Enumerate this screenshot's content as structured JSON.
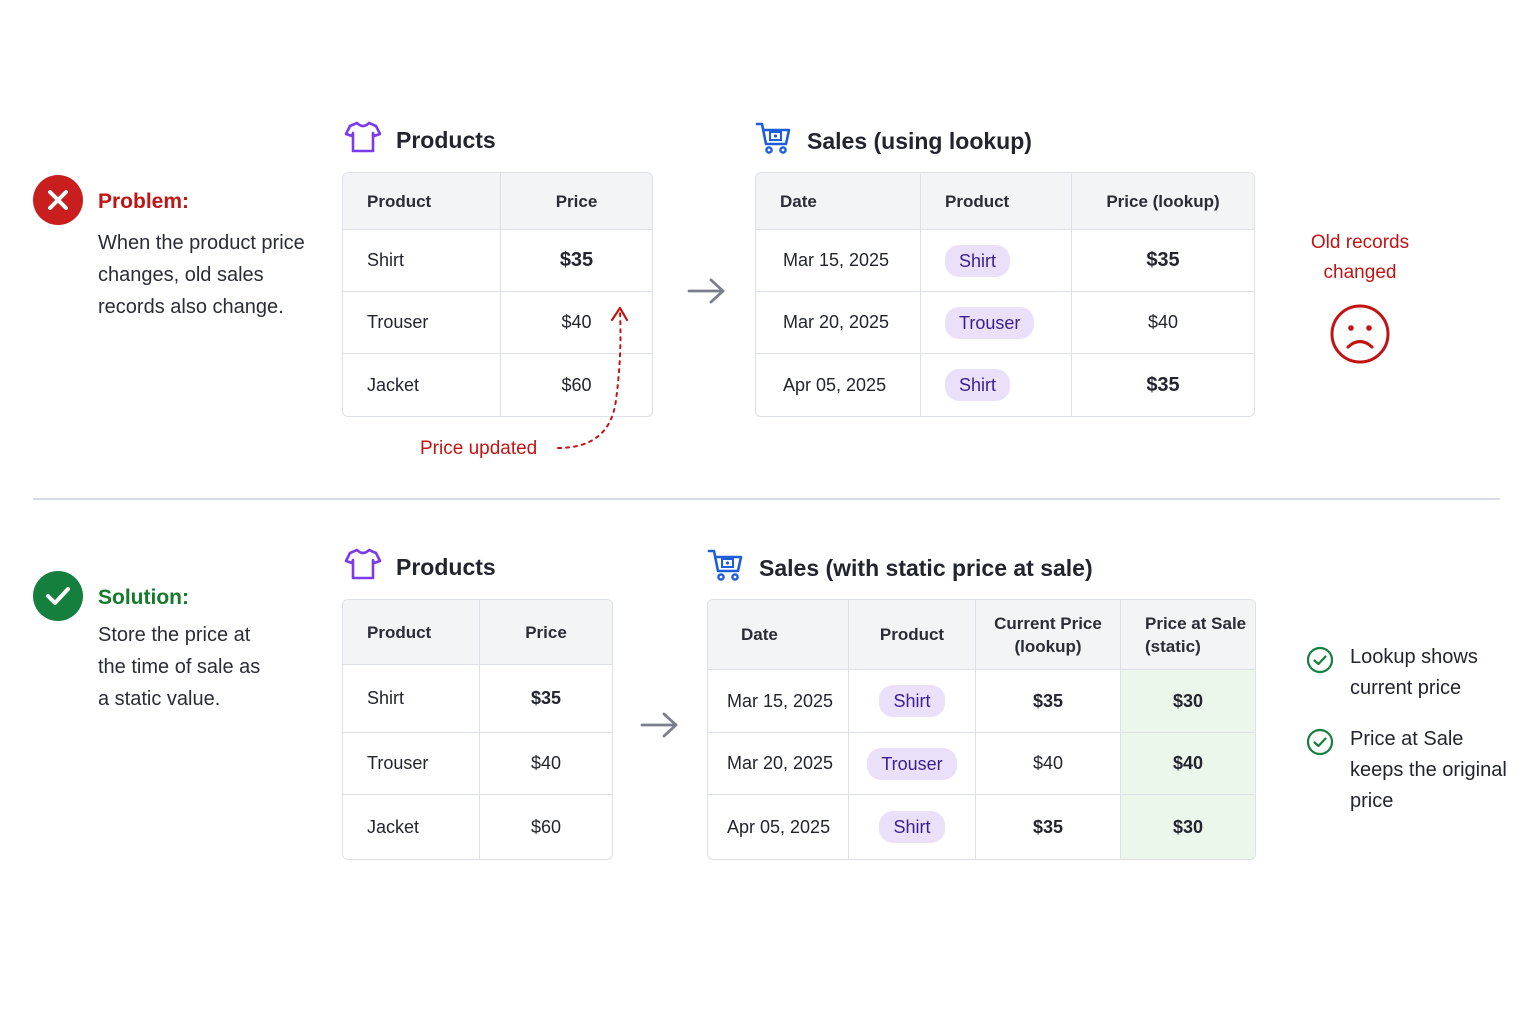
{
  "problem": {
    "title": "Problem:",
    "text": [
      "When the product price",
      "changes, old sales",
      "records also change."
    ]
  },
  "solution": {
    "title": "Solution:",
    "text": [
      "Store the price at",
      "the time of sale as",
      "a static value."
    ]
  },
  "top": {
    "products": {
      "title": "Products",
      "headers": [
        "Product",
        "Price"
      ],
      "rows": [
        [
          "Shirt",
          "$35"
        ],
        [
          "Trouser",
          "$40"
        ],
        [
          "Jacket",
          "$60"
        ]
      ]
    },
    "sales": {
      "title": "Sales (using lookup)",
      "headers": [
        "Date",
        "Product",
        "Price (lookup)"
      ],
      "rows": [
        [
          "Mar 15, 2025",
          "Shirt",
          "$35"
        ],
        [
          "Mar 20, 2025",
          "Trouser",
          "$40"
        ],
        [
          "Apr 05, 2025",
          "Shirt",
          "$35"
        ]
      ]
    },
    "price_updated_label": "Price updated",
    "old_records_note": [
      "Old records",
      "changed"
    ]
  },
  "bottom": {
    "products": {
      "title": "Products",
      "headers": [
        "Product",
        "Price"
      ],
      "rows": [
        [
          "Shirt",
          "$35"
        ],
        [
          "Trouser",
          "$40"
        ],
        [
          "Jacket",
          "$60"
        ]
      ]
    },
    "sales": {
      "title": "Sales (with static price at sale)",
      "headers": [
        "Date",
        "Product",
        [
          "Current Price",
          "(lookup)"
        ],
        [
          "Price at Sale",
          "(static)"
        ]
      ],
      "rows": [
        [
          "Mar 15, 2025",
          "Shirt",
          "$35",
          "$30"
        ],
        [
          "Mar 20, 2025",
          "Trouser",
          "$40",
          "$40"
        ],
        [
          "Apr 05, 2025",
          "Shirt",
          "$35",
          "$30"
        ]
      ]
    },
    "notes": [
      [
        "Lookup shows",
        "current price"
      ],
      [
        "Price at Sale",
        "keeps the original",
        "price"
      ]
    ]
  },
  "colors": {
    "problem_red": "#c21414",
    "solution_green": "#157a2b",
    "icon_purple": "#7c3aed",
    "icon_blue": "#1e5fd9",
    "pill_bg": "#ebe0fa",
    "static_bg": "#ecf7ec"
  },
  "icons": {
    "problem": "x-circle-icon",
    "solution": "check-circle-icon",
    "products": "shirt-icon",
    "sales": "shopping-cart-icon",
    "arrow": "arrow-right-icon",
    "sad": "sad-face-icon",
    "note_check": "check-outline-icon"
  }
}
